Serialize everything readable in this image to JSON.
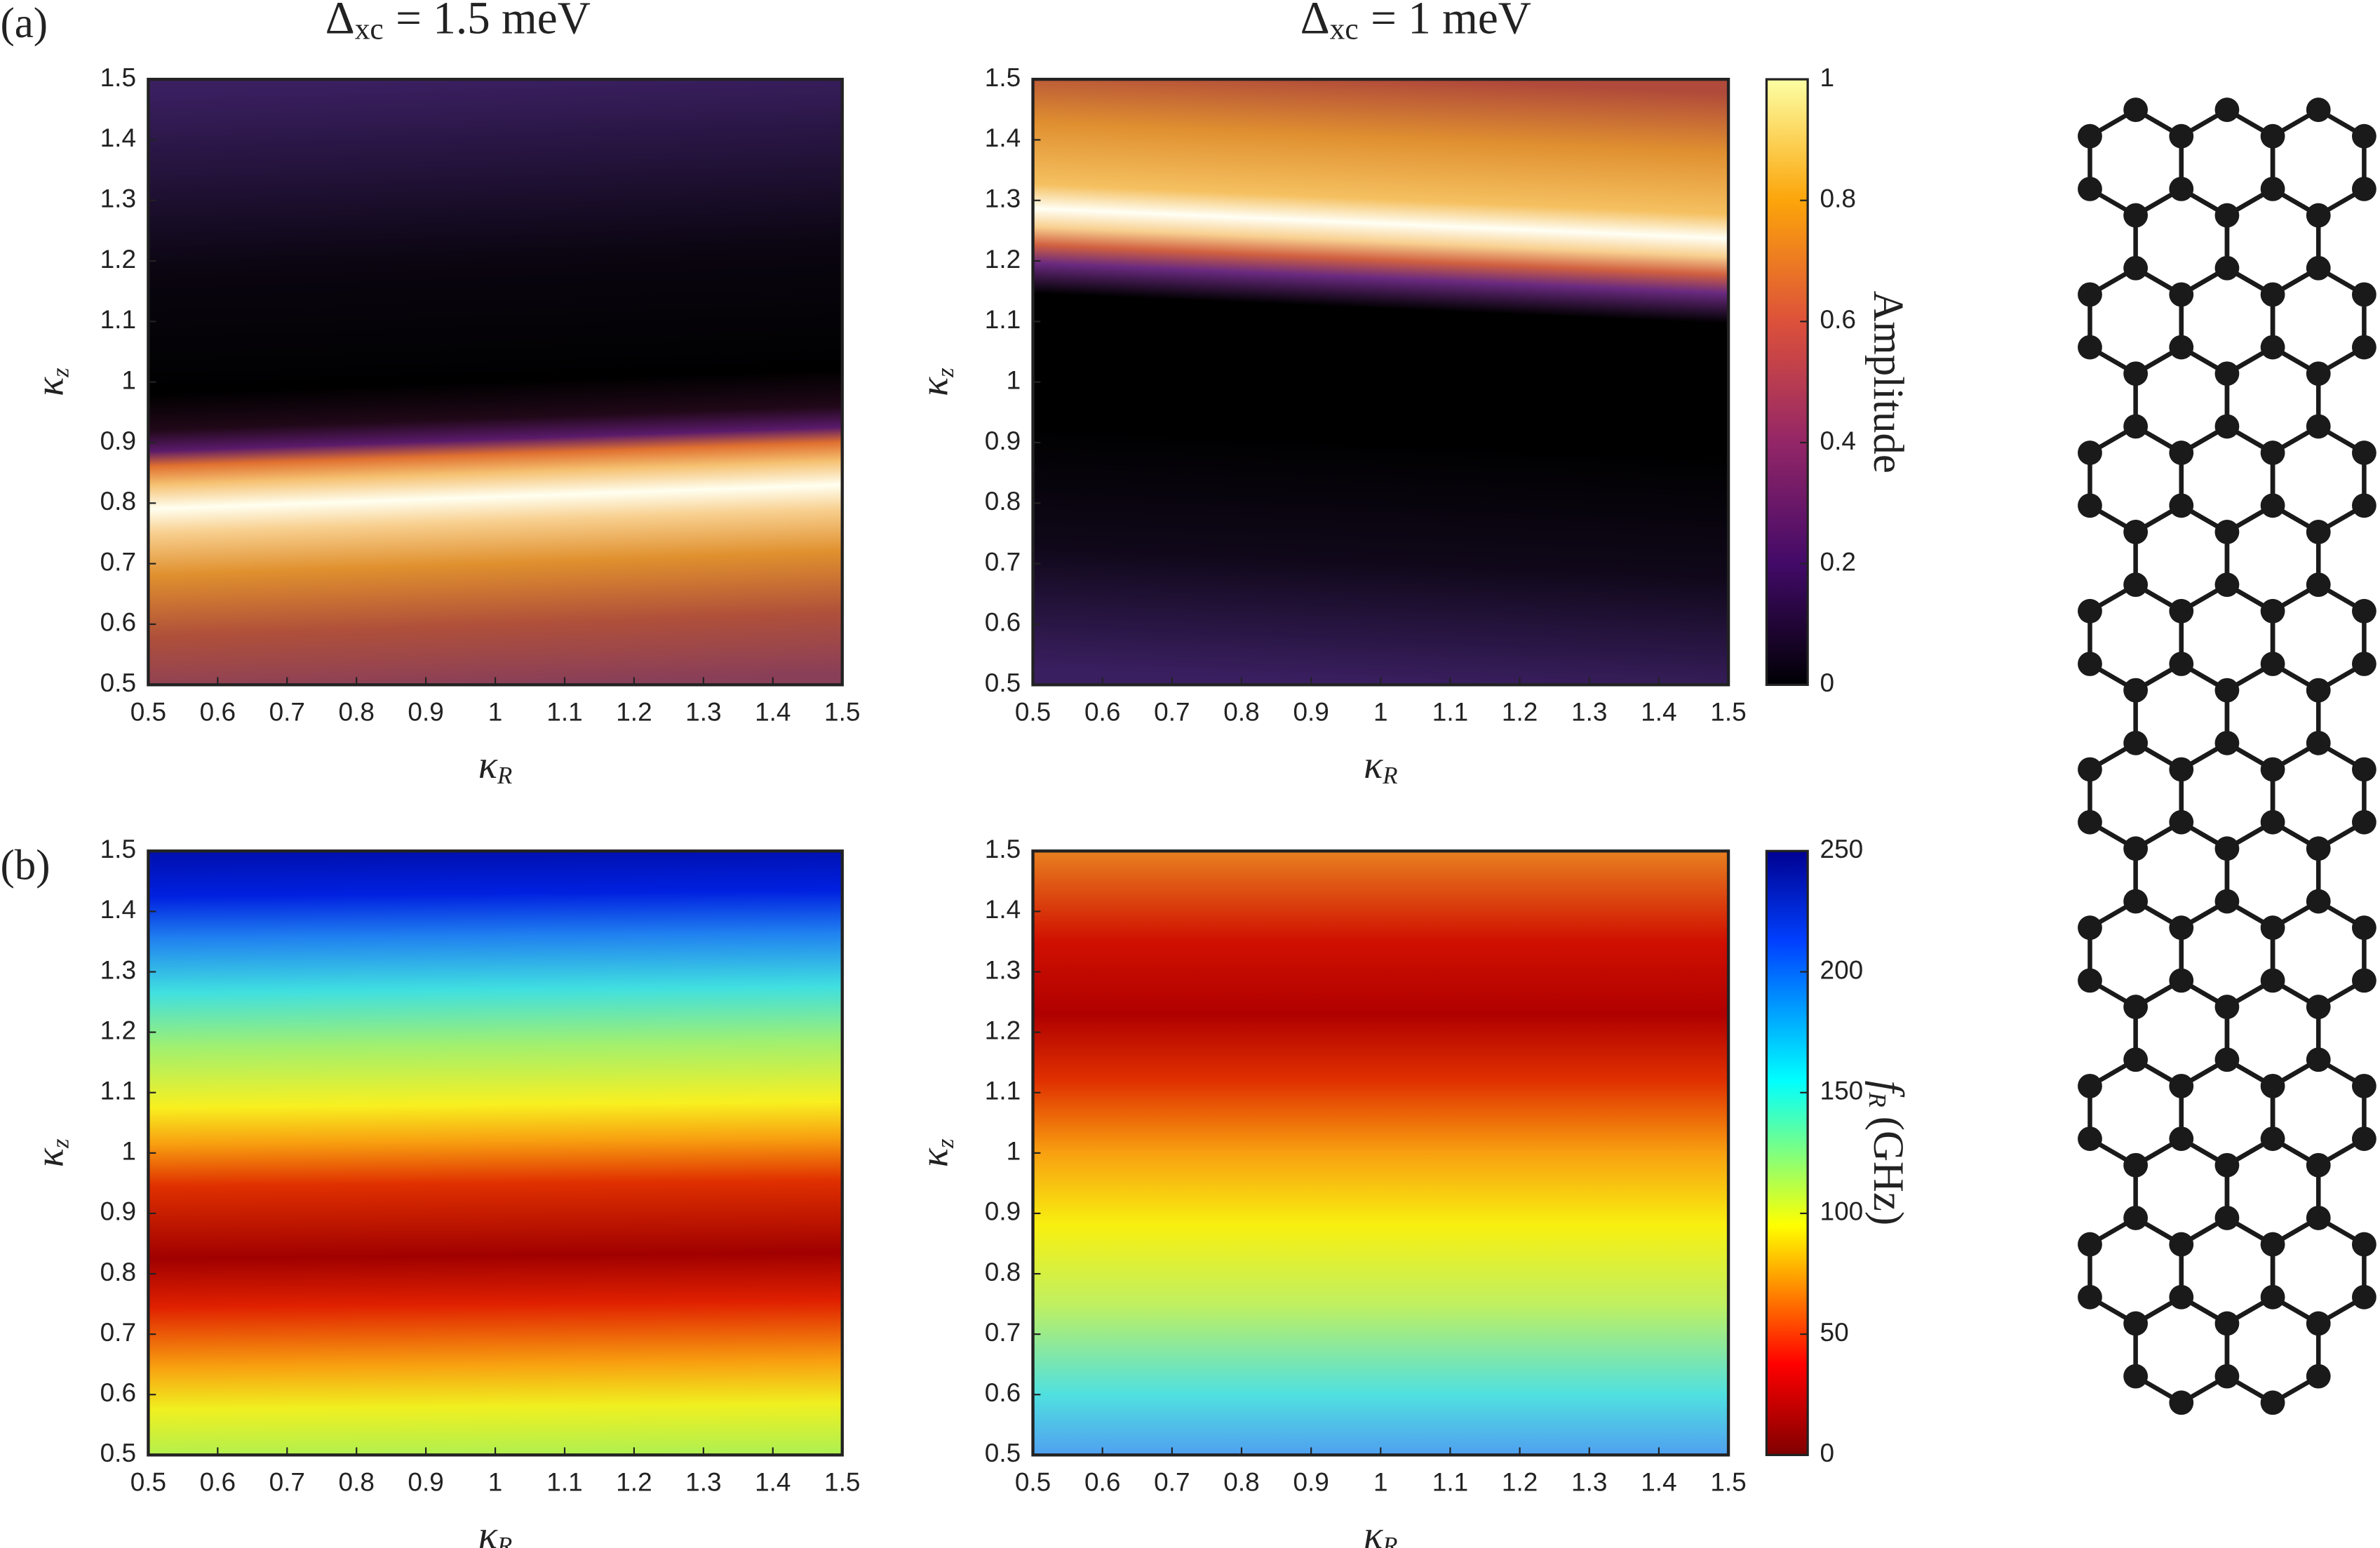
{
  "panel_labels": [
    "(a)",
    "(b)"
  ],
  "column_titles": [
    {
      "symbol": "Δ",
      "subscript": "xc",
      "rest": "= 1.5 meV"
    },
    {
      "symbol": "Δ",
      "subscript": "xc",
      "rest": "= 1 meV"
    }
  ],
  "chart_data": [
    {
      "type": "heatmap",
      "x_label": {
        "symbol": "κ",
        "subscript": "R"
      },
      "y_label": {
        "symbol": "κ",
        "subscript": "z"
      },
      "xlim": [
        0.5,
        1.5
      ],
      "xticks": [
        0.5,
        0.6,
        0.7,
        0.8,
        0.9,
        1,
        1.1,
        1.2,
        1.3,
        1.4,
        1.5
      ],
      "ylim": [
        0.5,
        1.5
      ],
      "yticks": [
        0.5,
        0.6,
        0.7,
        0.8,
        0.9,
        1,
        1.1,
        1.2,
        1.3,
        1.4,
        1.5
      ],
      "colormap": "inferno"
    },
    {
      "type": "heatmap",
      "x_label": {
        "symbol": "κ",
        "subscript": "R"
      },
      "y_label": {
        "symbol": "κ",
        "subscript": "z"
      },
      "xlim": [
        0.5,
        1.5
      ],
      "xticks": [
        0.5,
        0.6,
        0.7,
        0.8,
        0.9,
        1,
        1.1,
        1.2,
        1.3,
        1.4,
        1.5
      ],
      "ylim": [
        0.5,
        1.5
      ],
      "yticks": [
        0.5,
        0.6,
        0.7,
        0.8,
        0.9,
        1,
        1.1,
        1.2,
        1.3,
        1.4,
        1.5
      ],
      "colormap": "inferno",
      "colorbar": {
        "label": "Amplitude",
        "clim": [
          0,
          1
        ],
        "cticks": [
          0,
          0.2,
          0.4,
          0.6,
          0.8,
          1
        ]
      }
    },
    {
      "type": "heatmap",
      "x_label": {
        "symbol": "κ",
        "subscript": "R"
      },
      "y_label": {
        "symbol": "κ",
        "subscript": "z"
      },
      "xlim": [
        0.5,
        1.5
      ],
      "xticks": [
        0.5,
        0.6,
        0.7,
        0.8,
        0.9,
        1,
        1.1,
        1.2,
        1.3,
        1.4,
        1.5
      ],
      "ylim": [
        0.5,
        1.5
      ],
      "yticks": [
        0.5,
        0.6,
        0.7,
        0.8,
        0.9,
        1,
        1.1,
        1.2,
        1.3,
        1.4,
        1.5
      ],
      "colormap": "jet_r"
    },
    {
      "type": "heatmap",
      "x_label": {
        "symbol": "κ",
        "subscript": "R"
      },
      "y_label": {
        "symbol": "κ",
        "subscript": "z"
      },
      "xlim": [
        0.5,
        1.5
      ],
      "xticks": [
        0.5,
        0.6,
        0.7,
        0.8,
        0.9,
        1,
        1.1,
        1.2,
        1.3,
        1.4,
        1.5
      ],
      "ylim": [
        0.5,
        1.5
      ],
      "yticks": [
        0.5,
        0.6,
        0.7,
        0.8,
        0.9,
        1,
        1.1,
        1.2,
        1.3,
        1.4,
        1.5
      ],
      "colormap": "jet_r",
      "colorbar": {
        "label": {
          "symbol": "f",
          "subscript": "R",
          "rest": "(GHz)"
        },
        "clim": [
          0,
          250
        ],
        "cticks": [
          0,
          50,
          100,
          150,
          200,
          250
        ]
      }
    }
  ]
}
